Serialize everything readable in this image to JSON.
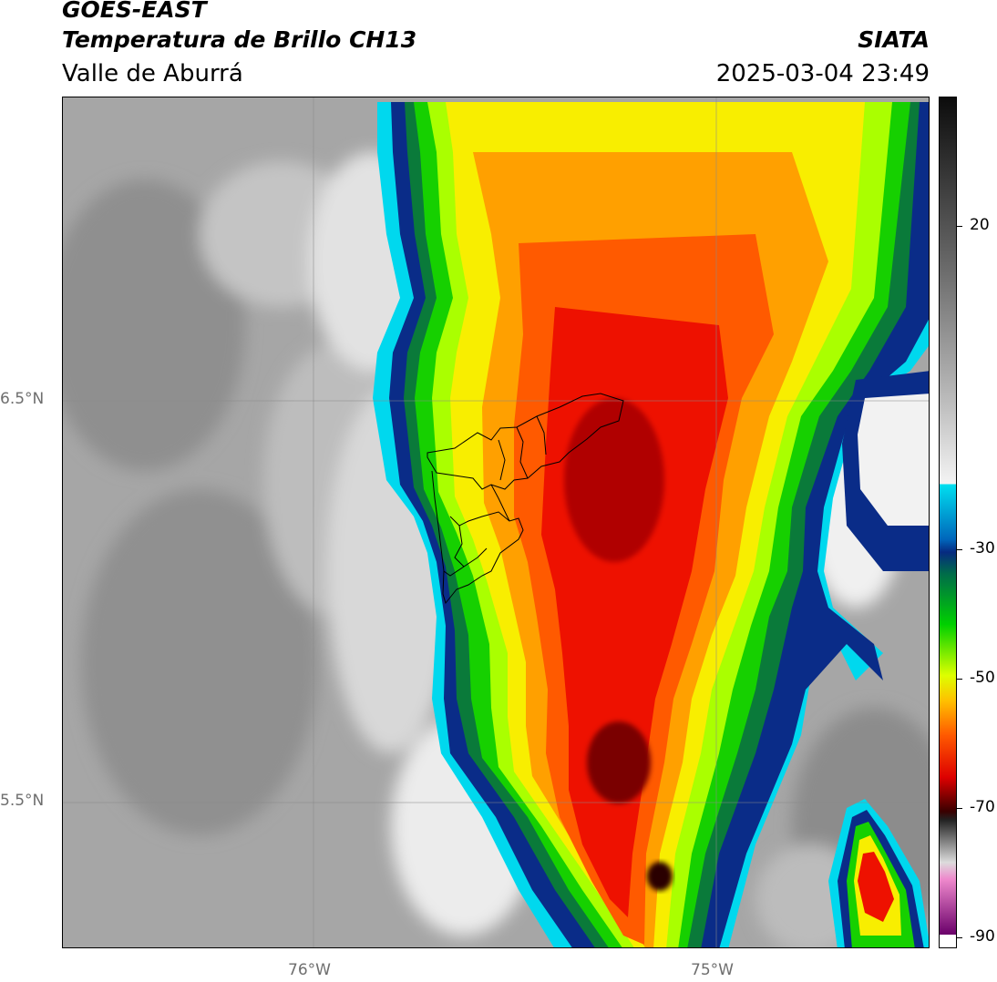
{
  "header": {
    "satellite": "GOES-EAST",
    "product": "Temperatura de Brillo CH13",
    "region": "Valle de Aburrá",
    "agency": "SIATA",
    "datetime": "2025-03-04 23:49"
  },
  "map": {
    "lat_labels": [
      "6.5°N",
      "5.5°N"
    ],
    "lon_labels": [
      "76°W",
      "75°W"
    ],
    "gridlines": true,
    "overlay": "municipality boundaries (black outlines)"
  },
  "colorbar": {
    "tick_labels": [
      "20",
      "-30",
      "-50",
      "-70",
      "-90"
    ],
    "colors": [
      "#111111",
      "#666666",
      "#cccccc",
      "#f2f2f2",
      "#00e0f0",
      "#003a8c",
      "#00c000",
      "#e6ff00",
      "#ff9900",
      "#ee1100",
      "#3a0000",
      "#888888",
      "#e060c0",
      "#7a007a",
      "#ffffff"
    ]
  }
}
